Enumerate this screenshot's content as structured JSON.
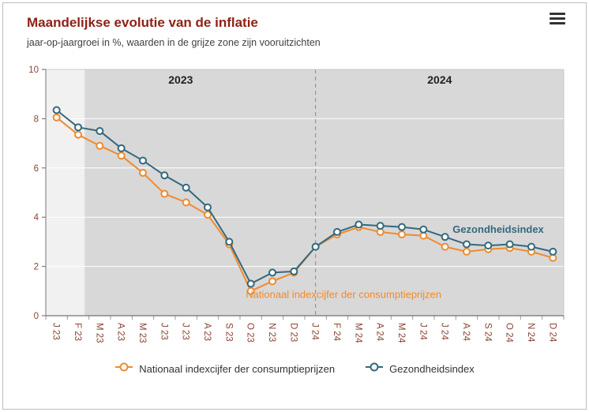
{
  "header": {
    "menu_icon": "hamburger-icon"
  },
  "colors": {
    "title": "#8e2216",
    "subtitle": "#3f3f3f",
    "axis_labels": "#8d4434",
    "grid": "#ffffff",
    "plot_bg": "#f1f1f1",
    "forecast_zone": "#d8d8d8",
    "divider": "#8a8a8a",
    "national_index": "#ef8b2f",
    "health_index": "#34697c"
  },
  "chart_data": {
    "type": "line",
    "title": "Maandelijkse evolutie van de inflatie",
    "subtitle": "jaar-op-jaargroei in %, waarden in de grijze zone zijn vooruitzichten",
    "categories": [
      "J 23",
      "F 23",
      "M 23",
      "A 23",
      "M 23",
      "J 23",
      "J 23",
      "A 23",
      "S 23",
      "O 23",
      "N 23",
      "D 23",
      "J 24",
      "F 24",
      "M 24",
      "A 24",
      "M 24",
      "J 24",
      "J 24",
      "A 24",
      "S 24",
      "O 24",
      "N 24",
      "D 24"
    ],
    "series": [
      {
        "name": "Nationaal indexcijfer der consumptieprijzen",
        "color": "#ef8b2f",
        "marker_fill": "#ffffff",
        "values": [
          8.05,
          7.35,
          6.9,
          6.5,
          5.8,
          4.95,
          4.6,
          4.1,
          2.9,
          1.0,
          1.4,
          1.75,
          2.8,
          3.3,
          3.6,
          3.4,
          3.3,
          3.25,
          2.8,
          2.6,
          2.7,
          2.75,
          2.6,
          2.35
        ]
      },
      {
        "name": "Gezondheidsindex",
        "color": "#34697c",
        "marker_fill": "#ffffff",
        "values": [
          8.35,
          7.65,
          7.5,
          6.8,
          6.3,
          5.7,
          5.2,
          4.4,
          3.0,
          1.3,
          1.75,
          1.8,
          2.8,
          3.4,
          3.7,
          3.65,
          3.6,
          3.5,
          3.2,
          2.9,
          2.85,
          2.9,
          2.8,
          2.6
        ]
      }
    ],
    "ylim": [
      0,
      10
    ],
    "yticks": [
      0,
      2,
      4,
      6,
      8,
      10
    ],
    "xlabel": "",
    "ylabel": "",
    "grid": true,
    "legend_position": "bottom",
    "year_labels": [
      "2023",
      "2024"
    ],
    "divider_category_index": 12,
    "forecast_zone": {
      "start_slot": 1.8,
      "meaning": "waarden in de grijze zone zijn vooruitzichten"
    },
    "annotations": [
      {
        "text": "Nationaal indexcijfer der consumptieprijzen",
        "color": "#ef8b2f",
        "x_index": 13.3,
        "y_value": 0.72,
        "anchor": "middle",
        "bold": false
      },
      {
        "text": "Gezondheidsindex",
        "color": "#34697c",
        "x_index": 18.35,
        "y_value": 3.37,
        "anchor": "start",
        "bold": true
      }
    ]
  }
}
